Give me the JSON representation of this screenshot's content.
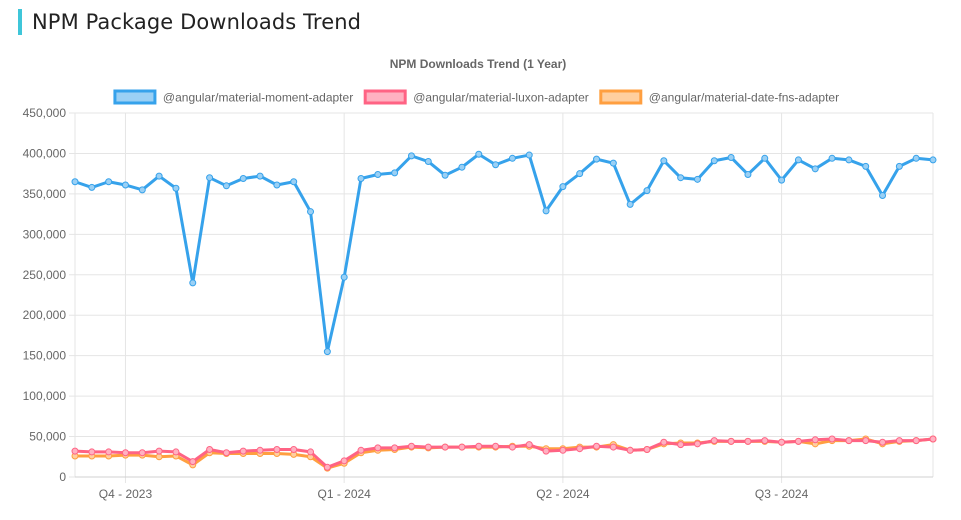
{
  "page": {
    "title": "NPM Package Downloads Trend"
  },
  "chart_data": {
    "type": "line",
    "title": "NPM Downloads Trend (1 Year)",
    "xlabel": "",
    "ylabel": "",
    "ylim": [
      0,
      450000
    ],
    "yticks": [
      0,
      50000,
      100000,
      150000,
      200000,
      250000,
      300000,
      350000,
      400000,
      450000
    ],
    "ytick_labels": [
      "0",
      "50,000",
      "100,000",
      "150,000",
      "200,000",
      "250,000",
      "300,000",
      "350,000",
      "400,000",
      "450,000"
    ],
    "xtick_labels": [
      "Q4 - 2023",
      "Q1 - 2024",
      "Q2 - 2024",
      "Q3 - 2024"
    ],
    "xtick_positions": [
      3,
      16,
      29,
      42
    ],
    "grid": true,
    "legend_position": "top-center",
    "series": [
      {
        "name": "@angular/material-moment-adapter",
        "color": "#36a2eb",
        "fill": "#9ad0f5",
        "values": [
          365000,
          358000,
          365000,
          361000,
          355000,
          372000,
          357000,
          240000,
          370000,
          360000,
          369000,
          372000,
          361000,
          365000,
          328000,
          155000,
          247000,
          369000,
          374000,
          376000,
          397000,
          390000,
          373000,
          383000,
          399000,
          386000,
          394000,
          398000,
          329000,
          359000,
          375000,
          393000,
          388000,
          337000,
          354000,
          391000,
          370000,
          368000,
          391000,
          395000,
          374000,
          394000,
          367000,
          392000,
          381000,
          394000,
          392000,
          384000,
          348000,
          384000,
          394000,
          392000
        ]
      },
      {
        "name": "@angular/material-luxon-adapter",
        "color": "#ff6384",
        "fill": "#ffb1c1",
        "values": [
          32000,
          31000,
          31000,
          30000,
          30000,
          32000,
          31000,
          19000,
          34000,
          30000,
          32000,
          33000,
          34000,
          34000,
          31000,
          12000,
          20000,
          33000,
          36000,
          36000,
          38000,
          37000,
          37000,
          37000,
          38000,
          38000,
          37000,
          40000,
          32000,
          33000,
          35000,
          38000,
          37000,
          33000,
          34000,
          43000,
          40000,
          41000,
          45000,
          44000,
          44000,
          45000,
          43000,
          44000,
          46000,
          47000,
          45000,
          45000,
          43000,
          45000,
          45000,
          47000
        ]
      },
      {
        "name": "@angular/material-date-fns-adapter",
        "color": "#ff9f40",
        "fill": "#ffcf9f",
        "values": [
          26000,
          26000,
          26000,
          27000,
          27000,
          25000,
          26000,
          15000,
          30000,
          29000,
          29000,
          29000,
          29000,
          28000,
          25000,
          11000,
          17000,
          30000,
          33000,
          34000,
          37000,
          36000,
          37000,
          37000,
          37000,
          37000,
          38000,
          38000,
          35000,
          35000,
          37000,
          37000,
          40000,
          33000,
          34000,
          41000,
          42000,
          42000,
          44000,
          44000,
          44000,
          44000,
          43000,
          44000,
          41000,
          45000,
          45000,
          47000,
          41000,
          44000,
          45000,
          47000
        ]
      }
    ]
  }
}
